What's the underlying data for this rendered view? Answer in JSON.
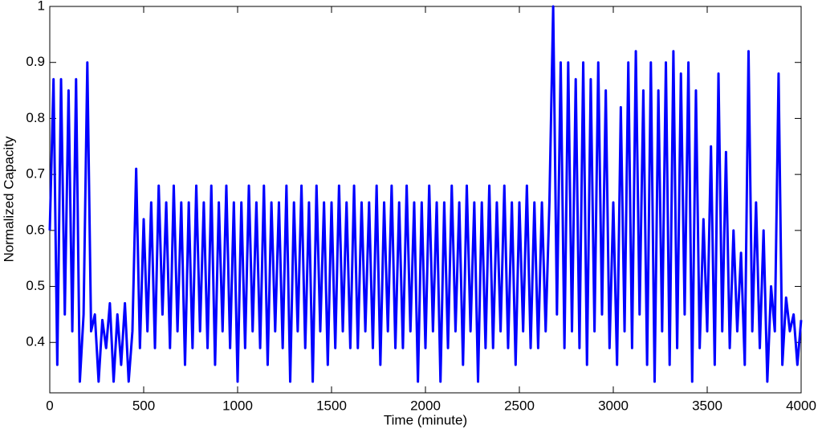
{
  "chart_data": {
    "type": "line",
    "xlabel": "Time (minute)",
    "ylabel": "Normalized Capacity",
    "color": "#0000ff",
    "x": [
      0,
      20,
      40,
      60,
      80,
      100,
      120,
      140,
      160,
      180,
      200,
      220,
      240,
      260,
      280,
      300,
      320,
      340,
      360,
      380,
      400,
      420,
      440,
      460,
      480,
      500,
      520,
      540,
      560,
      580,
      600,
      620,
      640,
      660,
      680,
      700,
      720,
      740,
      760,
      780,
      800,
      820,
      840,
      860,
      880,
      900,
      920,
      940,
      960,
      980,
      1000,
      1020,
      1040,
      1060,
      1080,
      1100,
      1120,
      1140,
      1160,
      1180,
      1200,
      1220,
      1240,
      1260,
      1280,
      1300,
      1320,
      1340,
      1360,
      1380,
      1400,
      1420,
      1440,
      1460,
      1480,
      1500,
      1520,
      1540,
      1560,
      1580,
      1600,
      1620,
      1640,
      1660,
      1680,
      1700,
      1720,
      1740,
      1760,
      1780,
      1800,
      1820,
      1840,
      1860,
      1880,
      1900,
      1920,
      1940,
      1960,
      1980,
      2000,
      2020,
      2040,
      2060,
      2080,
      2100,
      2120,
      2140,
      2160,
      2180,
      2200,
      2220,
      2240,
      2260,
      2280,
      2300,
      2320,
      2340,
      2360,
      2380,
      2400,
      2420,
      2440,
      2460,
      2480,
      2500,
      2520,
      2540,
      2560,
      2580,
      2600,
      2620,
      2640,
      2660,
      2680,
      2700,
      2720,
      2740,
      2760,
      2780,
      2800,
      2820,
      2840,
      2860,
      2880,
      2900,
      2920,
      2940,
      2960,
      2980,
      3000,
      3020,
      3040,
      3060,
      3080,
      3100,
      3120,
      3140,
      3160,
      3180,
      3200,
      3220,
      3240,
      3260,
      3280,
      3300,
      3320,
      3340,
      3360,
      3380,
      3400,
      3420,
      3440,
      3460,
      3480,
      3500,
      3520,
      3540,
      3560,
      3580,
      3600,
      3620,
      3640,
      3660,
      3680,
      3700,
      3720,
      3740,
      3760,
      3780,
      3800,
      3820,
      3840,
      3860,
      3880,
      3900,
      3920,
      3940,
      3960,
      3980,
      4000
    ],
    "values": [
      0.6,
      0.87,
      0.36,
      0.87,
      0.45,
      0.85,
      0.42,
      0.87,
      0.33,
      0.45,
      0.9,
      0.42,
      0.45,
      0.33,
      0.44,
      0.39,
      0.47,
      0.33,
      0.45,
      0.36,
      0.47,
      0.33,
      0.42,
      0.71,
      0.39,
      0.62,
      0.42,
      0.65,
      0.39,
      0.68,
      0.45,
      0.65,
      0.39,
      0.68,
      0.42,
      0.65,
      0.36,
      0.65,
      0.39,
      0.68,
      0.42,
      0.65,
      0.39,
      0.68,
      0.36,
      0.65,
      0.42,
      0.68,
      0.39,
      0.65,
      0.33,
      0.65,
      0.39,
      0.68,
      0.42,
      0.65,
      0.39,
      0.68,
      0.36,
      0.65,
      0.42,
      0.65,
      0.39,
      0.68,
      0.33,
      0.65,
      0.42,
      0.68,
      0.39,
      0.65,
      0.33,
      0.68,
      0.42,
      0.65,
      0.36,
      0.65,
      0.39,
      0.68,
      0.42,
      0.65,
      0.39,
      0.68,
      0.39,
      0.65,
      0.42,
      0.65,
      0.39,
      0.68,
      0.36,
      0.65,
      0.42,
      0.68,
      0.39,
      0.65,
      0.39,
      0.68,
      0.42,
      0.65,
      0.33,
      0.65,
      0.39,
      0.68,
      0.42,
      0.65,
      0.33,
      0.65,
      0.39,
      0.68,
      0.42,
      0.65,
      0.36,
      0.68,
      0.42,
      0.65,
      0.33,
      0.65,
      0.39,
      0.68,
      0.39,
      0.65,
      0.42,
      0.68,
      0.39,
      0.65,
      0.36,
      0.65,
      0.42,
      0.68,
      0.39,
      0.65,
      0.39,
      0.65,
      0.42,
      0.65,
      1.0,
      0.45,
      0.9,
      0.39,
      0.9,
      0.42,
      0.87,
      0.39,
      0.9,
      0.36,
      0.87,
      0.42,
      0.9,
      0.45,
      0.85,
      0.39,
      0.65,
      0.36,
      0.82,
      0.42,
      0.9,
      0.39,
      0.92,
      0.45,
      0.85,
      0.36,
      0.9,
      0.33,
      0.85,
      0.42,
      0.9,
      0.36,
      0.92,
      0.39,
      0.88,
      0.45,
      0.9,
      0.33,
      0.85,
      0.39,
      0.62,
      0.42,
      0.75,
      0.36,
      0.88,
      0.42,
      0.74,
      0.39,
      0.6,
      0.42,
      0.56,
      0.36,
      0.92,
      0.42,
      0.65,
      0.39,
      0.6,
      0.33,
      0.5,
      0.42,
      0.88,
      0.36,
      0.48,
      0.42,
      0.45,
      0.36,
      0.44
    ],
    "xlim": [
      0,
      4000
    ],
    "xticks": [
      0,
      500,
      1000,
      1500,
      2000,
      2500,
      3000,
      3500,
      4000
    ],
    "ylim": [
      0.31,
      1
    ],
    "yticks": [
      0.4,
      0.5,
      0.6,
      0.7,
      0.8,
      0.9,
      1
    ]
  }
}
